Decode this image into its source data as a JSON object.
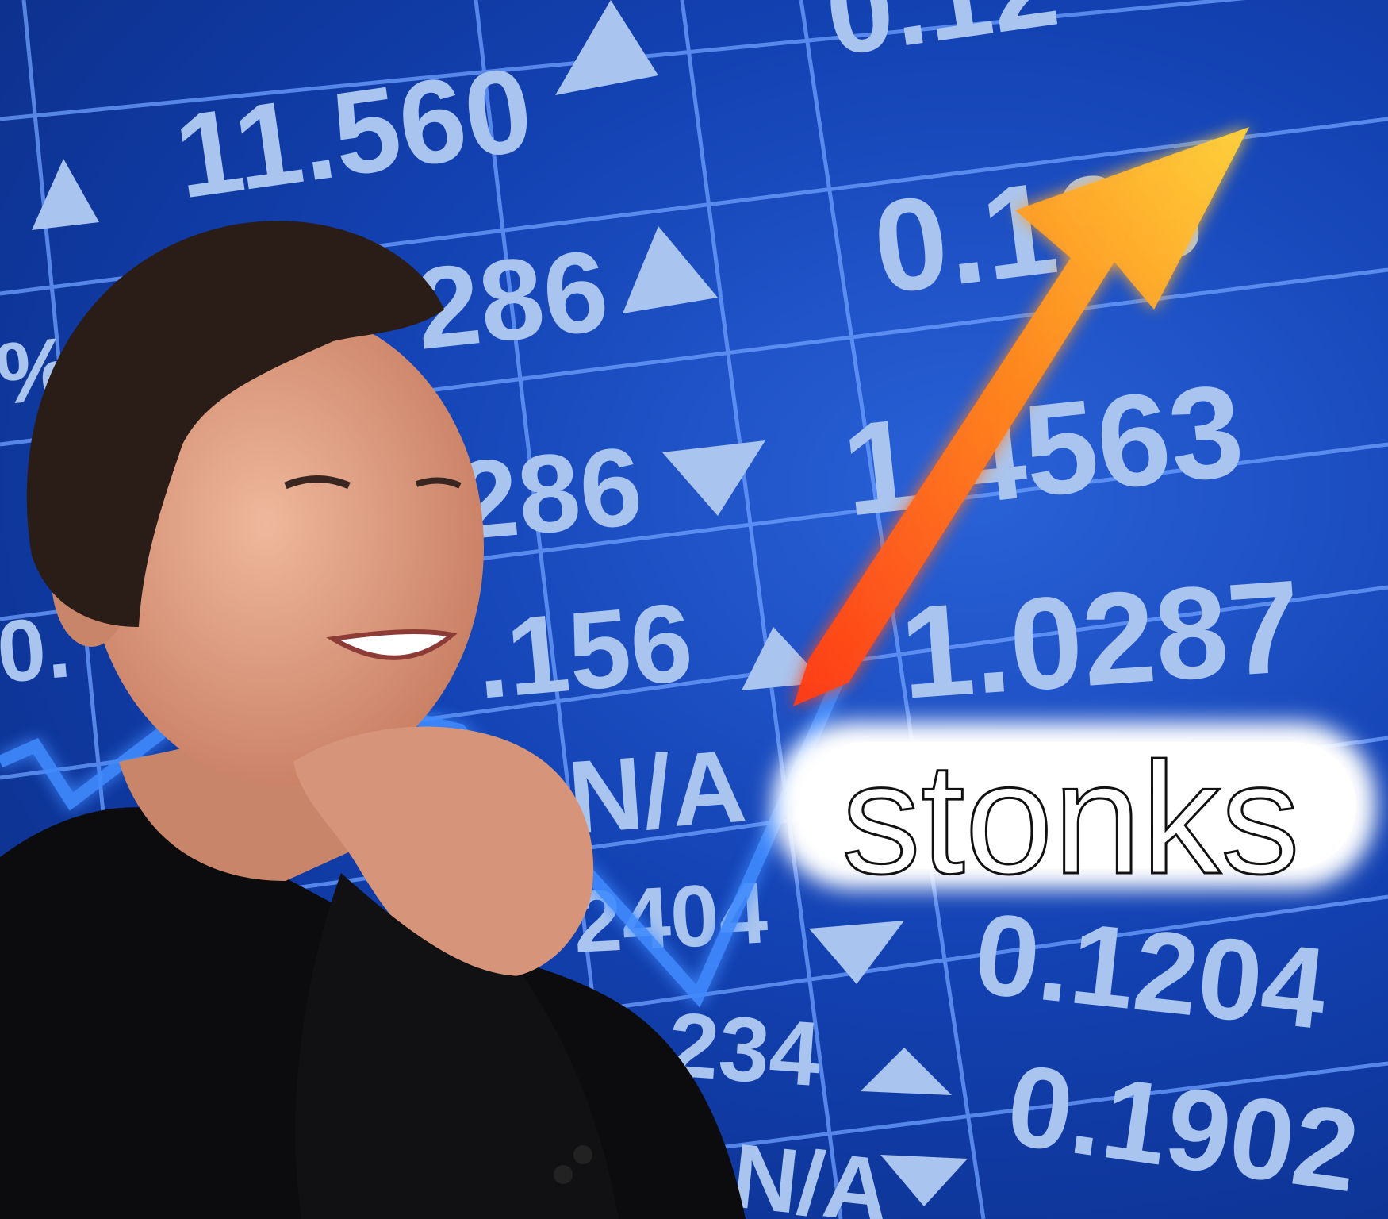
{
  "board": {
    "values": [
      "0.12",
      "11.560",
      "0.168",
      "286",
      "1.4563",
      "286",
      ".156",
      "1.0287",
      "N/A",
      "2404",
      "0.1204",
      "234",
      "0.1902",
      "N/A",
      "%",
      "0."
    ]
  },
  "caption": {
    "text": "stonks"
  },
  "colors": {
    "board_bg": "#1342b3",
    "grid": "#6ea0ff",
    "number": "#a9c4ee",
    "arrow_start": "#ff4a1a",
    "arrow_end": "#ffd23a",
    "suit": "#0c0c0e",
    "skin": "#e6a58a",
    "hair": "#2a1c17",
    "caption_bg": "#ffffff"
  },
  "icons": [
    "triangle-up-icon",
    "triangle-down-icon",
    "trend-arrow-icon"
  ]
}
